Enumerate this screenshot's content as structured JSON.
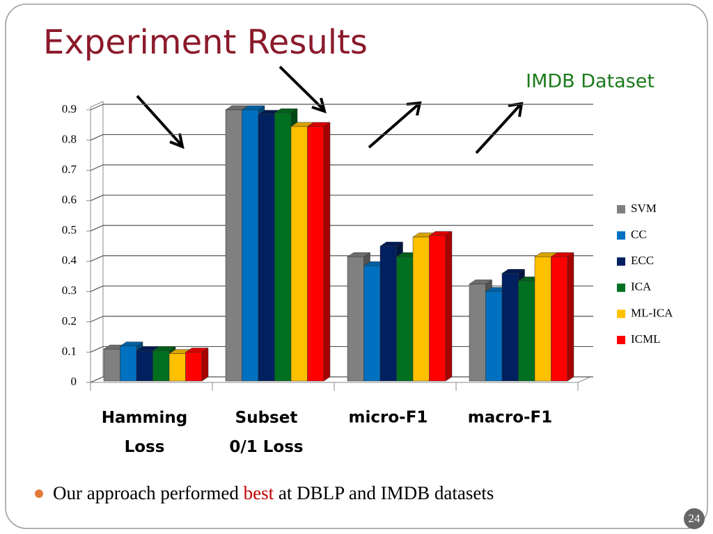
{
  "chart_data": {
    "type": "bar3d",
    "title": "Experiment Results",
    "annotation": "IMDB Dataset",
    "categories": [
      "Hamming Loss",
      "Subset 0/1 Loss",
      "micro-F1",
      "macro-F1"
    ],
    "series": [
      {
        "name": "SVM",
        "color": "#808080",
        "values": [
          0.11,
          0.9,
          0.415,
          0.325
        ]
      },
      {
        "name": "CC",
        "color": "#0070c0",
        "values": [
          0.12,
          0.9,
          0.385,
          0.3
        ]
      },
      {
        "name": "ECC",
        "color": "#002060",
        "values": [
          0.105,
          0.885,
          0.45,
          0.36
        ]
      },
      {
        "name": "ICA",
        "color": "#007020",
        "values": [
          0.105,
          0.89,
          0.415,
          0.335
        ]
      },
      {
        "name": "ML-ICA",
        "color": "#ffc000",
        "values": [
          0.095,
          0.845,
          0.48,
          0.415
        ]
      },
      {
        "name": "ICML",
        "color": "#ff0000",
        "values": [
          0.1,
          0.845,
          0.485,
          0.415
        ]
      }
    ],
    "ylim": [
      0,
      0.9
    ],
    "yticks": [
      0,
      0.1,
      0.2,
      0.3,
      0.4,
      0.5,
      0.6,
      0.7,
      0.8,
      0.9
    ],
    "grid": true,
    "legend": "right"
  },
  "slide": {
    "bullet": [
      "Our approach performed ",
      "best",
      " at DBLP and IMDB datasets"
    ],
    "page_number": "24"
  }
}
